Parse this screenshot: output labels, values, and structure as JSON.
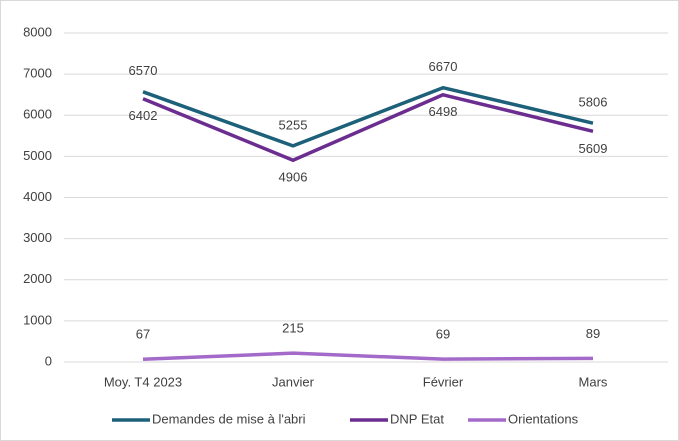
{
  "chart_data": {
    "type": "line",
    "categories": [
      "Moy. T4 2023",
      "Janvier",
      "Février",
      "Mars"
    ],
    "series": [
      {
        "name": "Demandes de mise à l'abri",
        "color": "#1d6079",
        "values": [
          6570,
          5255,
          6670,
          5806
        ]
      },
      {
        "name": "DNP Etat",
        "color": "#6b2d8f",
        "values": [
          6402,
          4906,
          6498,
          5609
        ]
      },
      {
        "name": "Orientations",
        "color": "#a36ac9",
        "values": [
          67,
          215,
          69,
          89
        ]
      }
    ],
    "ylim": [
      0,
      8000
    ],
    "yticks": [
      0,
      1000,
      2000,
      3000,
      4000,
      5000,
      6000,
      7000,
      8000
    ],
    "grid": true,
    "legend": "bottom"
  }
}
